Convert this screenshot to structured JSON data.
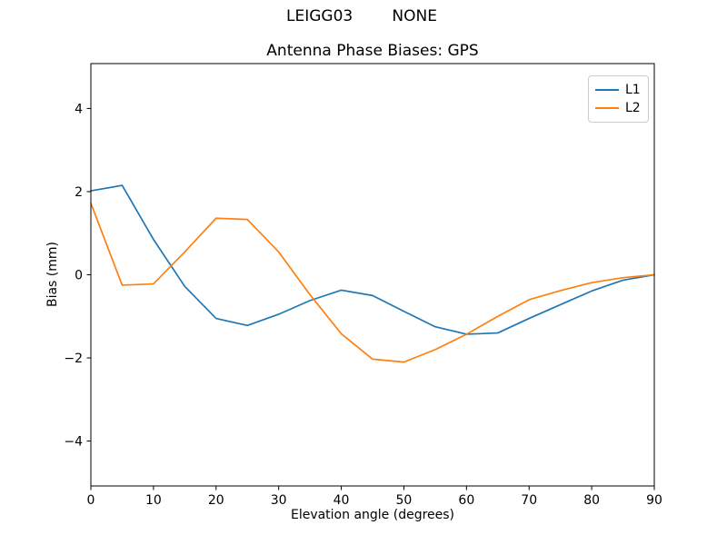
{
  "chart_data": {
    "type": "line",
    "suptitle": "LEIGG03        NONE",
    "title": "Antenna Phase Biases: GPS",
    "xlabel": "Elevation angle (degrees)",
    "ylabel": "Bias (mm)",
    "xlim": [
      0,
      90
    ],
    "ylim": [
      -5.08,
      5.08
    ],
    "x_ticks": [
      0,
      10,
      20,
      30,
      40,
      50,
      60,
      70,
      80,
      90
    ],
    "y_ticks": [
      -4,
      -2,
      0,
      2,
      4
    ],
    "grid": false,
    "legend_position": "upper right",
    "background_color": "#ffffff",
    "spine_color": "#000000",
    "x": [
      0,
      5,
      10,
      15,
      20,
      25,
      30,
      35,
      40,
      45,
      50,
      55,
      60,
      65,
      70,
      75,
      80,
      85,
      90
    ],
    "series": [
      {
        "name": "L1",
        "color": "#1f77b4",
        "values": [
          2.02,
          2.15,
          0.85,
          -0.28,
          -1.05,
          -1.22,
          -0.95,
          -0.62,
          -0.37,
          -0.5,
          -0.88,
          -1.25,
          -1.43,
          -1.4,
          -1.05,
          -0.72,
          -0.39,
          -0.13,
          0.0
        ]
      },
      {
        "name": "L2",
        "color": "#ff7f0e",
        "values": [
          1.72,
          -0.25,
          -0.22,
          0.55,
          1.36,
          1.33,
          0.55,
          -0.48,
          -1.42,
          -2.03,
          -2.1,
          -1.8,
          -1.43,
          -1.0,
          -0.6,
          -0.38,
          -0.19,
          -0.07,
          0.0
        ]
      }
    ]
  }
}
